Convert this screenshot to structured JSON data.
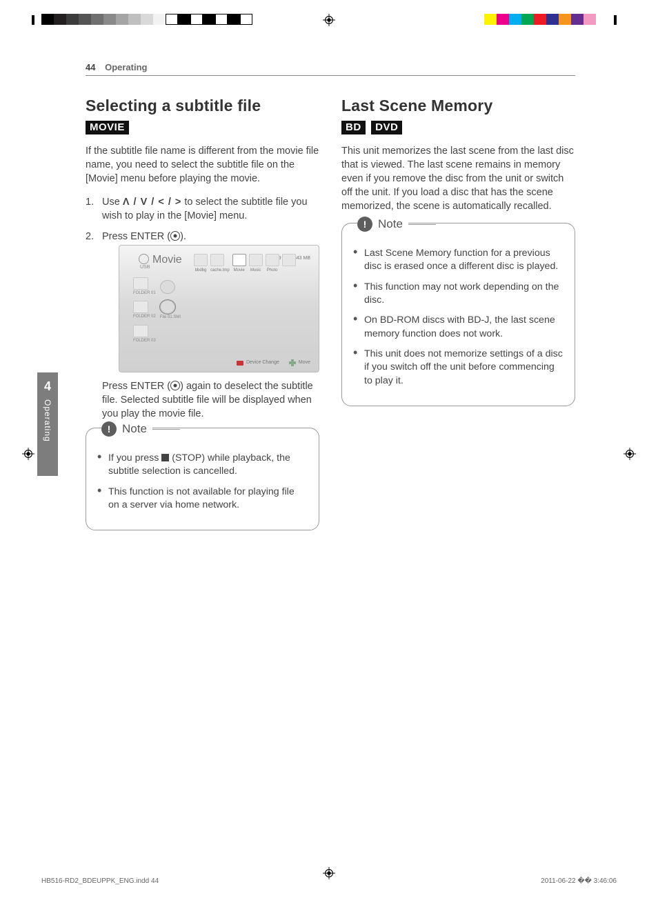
{
  "print": {
    "file": "HB516-RD2_BDEUPPK_ENG.indd   44",
    "timestamp": "2011-06-22   �� 3:46:06",
    "colorbars_left": [
      "#000000",
      "#231f20",
      "#3b3b3b",
      "#555555",
      "#707070",
      "#8a8a8a",
      "#a5a5a5",
      "#bfbfbf",
      "#d9d9d9",
      "#f2f2f2",
      "#ffffff",
      "#000000",
      "#ffffff",
      "#000000",
      "#ffffff",
      "#000000",
      "#ffffff"
    ],
    "colorbars_right": [
      "#fff200",
      "#ec008c",
      "#00aeef",
      "#00a651",
      "#ed1c24",
      "#2e3192",
      "#f7941d",
      "#662d91",
      "#f49ac1",
      "#ffffff"
    ]
  },
  "header": {
    "page_no": "44",
    "section": "Operating"
  },
  "sidetab": {
    "num": "4",
    "label": "Operating"
  },
  "left": {
    "h2": "Selecting a subtitle file",
    "tags": [
      "MOVIE"
    ],
    "intro": "If the subtitle file name is different from the movie file name, you need to select the subtitle file on the [Movie] menu before playing the movie.",
    "step1_a": "Use ",
    "step1_arrows": "Λ / V / < / >",
    "step1_b": " to select the subtitle file you wish to play in the [Movie] menu.",
    "step2_a": "Press ENTER (",
    "step2_b": ").",
    "after_a": "Press ENTER (",
    "after_b": ") again to deselect the subtitle file. Selected subtitle file will be displayed when you play the movie file.",
    "shot": {
      "title": "Movie",
      "sub": "USB",
      "status": "489 MB/3843 MB",
      "tabs": [
        {
          "label": "bbdbg"
        },
        {
          "label": "cache.tmp"
        },
        {
          "label": "Movie",
          "active": true
        },
        {
          "label": "Music"
        },
        {
          "label": "Photo"
        },
        {
          "label": ""
        }
      ],
      "rows": [
        {
          "type": "folder",
          "hasReel": true,
          "label": "FOLDER 01"
        },
        {
          "type": "folder",
          "hasReel": true,
          "reelSel": true,
          "reelLabel": "File 01.SMI",
          "label": "FOLDER 02"
        },
        {
          "type": "folder",
          "hasReel": false,
          "label": "FOLDER 03"
        }
      ],
      "footer": {
        "device": "Device Change",
        "move": "Move"
      }
    },
    "note_label": "Note",
    "note_items_a1": "If you press ",
    "note_items_a2": " (STOP) while playback, the subtitle selection is cancelled.",
    "note_items_b": "This function is not available for playing file on a server via home network."
  },
  "right": {
    "h2": "Last Scene Memory",
    "tags": [
      "BD",
      "DVD"
    ],
    "intro": "This unit memorizes the last scene from the last disc that is viewed. The last scene remains in memory even if you remove the disc from the unit or switch off the unit. If you load a disc that has the scene memorized, the scene is automatically recalled.",
    "note_label": "Note",
    "note_items": [
      "Last Scene Memory function for a previous disc is erased once a different disc is played.",
      "This function may not work depending on the disc.",
      "On BD-ROM discs with BD-J, the last scene memory function does not work.",
      "This unit does not memorize settings of a disc if you switch off the unit before commencing to play it."
    ]
  }
}
